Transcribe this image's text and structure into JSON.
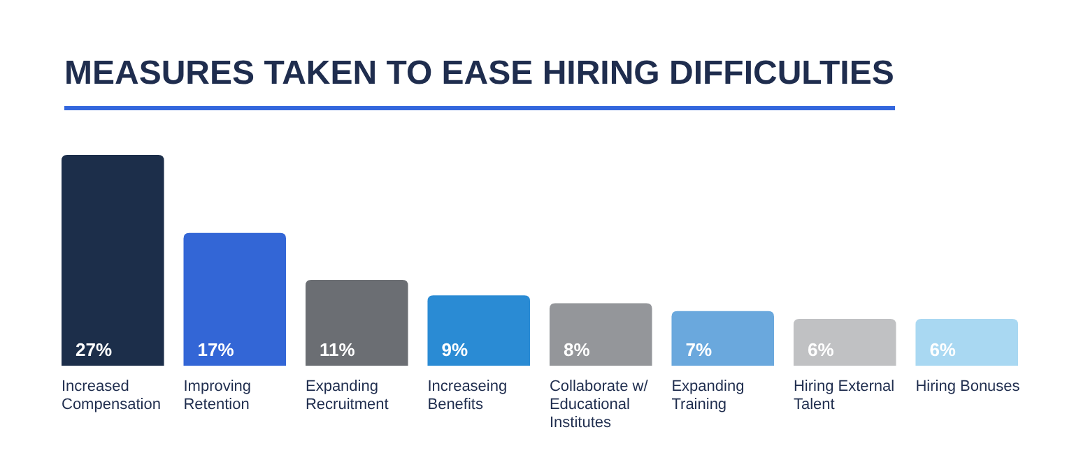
{
  "chart_data": {
    "type": "bar",
    "title": "MEASURES TAKEN TO EASE HIRING DIFFICULTIES",
    "categories": [
      "Increased Compensation",
      "Improving Retention",
      "Expanding Recruitment",
      "Increaseing Benefits",
      "Collaborate w/ Educational Institutes",
      "Expanding Training",
      "Hiring External Talent",
      "Hiring Bonuses"
    ],
    "values": [
      27,
      17,
      11,
      9,
      8,
      7,
      6,
      6
    ],
    "value_labels": [
      "27%",
      "17%",
      "11%",
      "9%",
      "8%",
      "7%",
      "6%",
      "6%"
    ],
    "colors": [
      "#1c2e4a",
      "#3366d6",
      "#6b6e73",
      "#2a8bd4",
      "#94969a",
      "#6aa8dd",
      "#c0c1c3",
      "#a9d8f2"
    ]
  }
}
